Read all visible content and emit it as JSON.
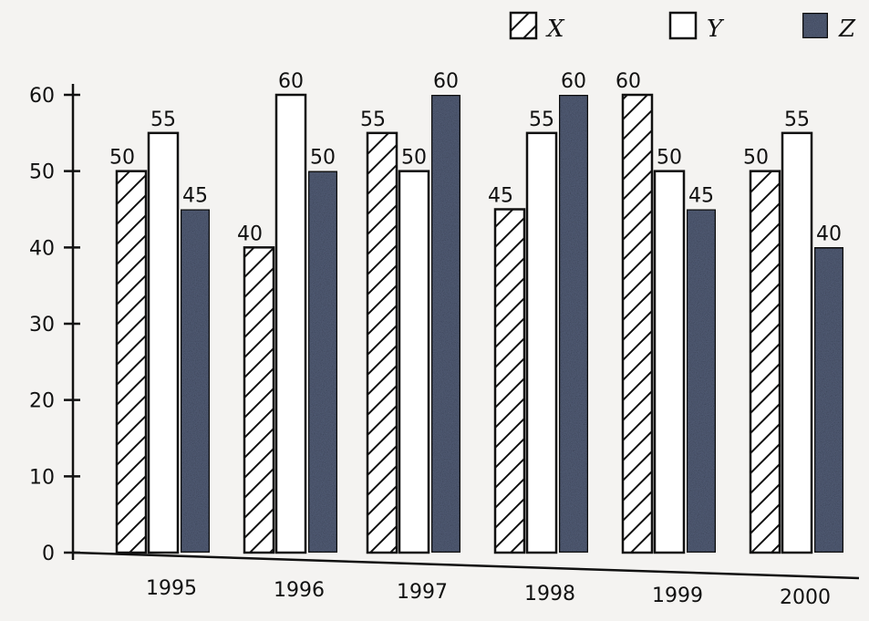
{
  "chart_data": {
    "type": "bar",
    "categories": [
      "1995",
      "1996",
      "1997",
      "1998",
      "1999",
      "2000"
    ],
    "series": [
      {
        "name": "X",
        "values": [
          50,
          40,
          55,
          45,
          60,
          50
        ]
      },
      {
        "name": "Y",
        "values": [
          55,
          60,
          50,
          55,
          50,
          55
        ]
      },
      {
        "name": "Z",
        "values": [
          45,
          50,
          60,
          60,
          45,
          40
        ]
      }
    ],
    "title": "",
    "xlabel": "",
    "ylabel": "",
    "ylim": [
      0,
      60
    ],
    "yticks": [
      0,
      10,
      20,
      30,
      40,
      50,
      60
    ],
    "grid": false,
    "legend_position": "top-right"
  }
}
